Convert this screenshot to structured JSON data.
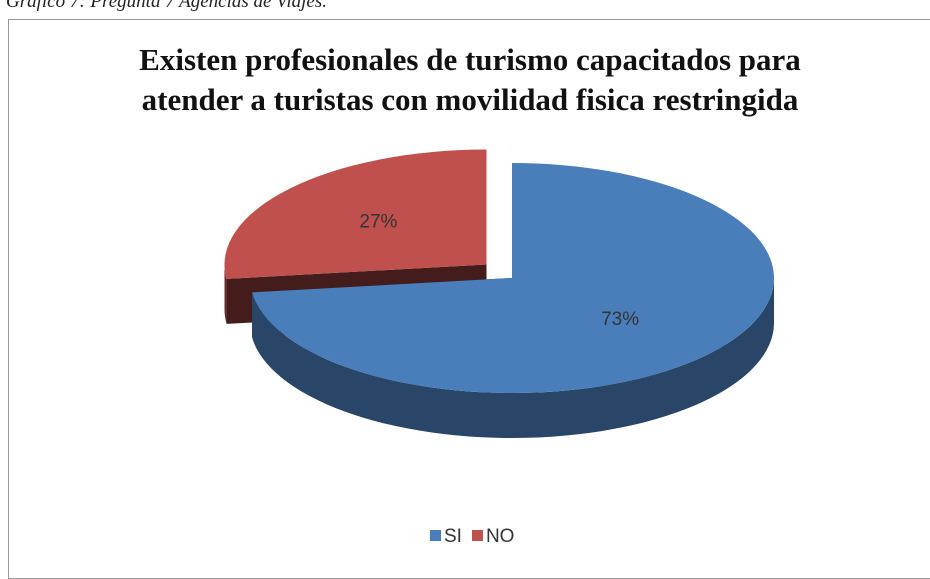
{
  "caption": "Gráfico 7: Pregunta 7 Agencias de Viajes.",
  "chart_data": {
    "type": "pie",
    "title": "Existen profesionales de turismo capacitados para atender a turistas con movilidad fisica restringida",
    "categories": [
      "SI",
      "NO"
    ],
    "values": [
      73,
      27
    ],
    "value_labels": [
      "73%",
      "27%"
    ],
    "colors": [
      "#4a7ebb",
      "#c0504d"
    ],
    "legend": "bottom"
  }
}
